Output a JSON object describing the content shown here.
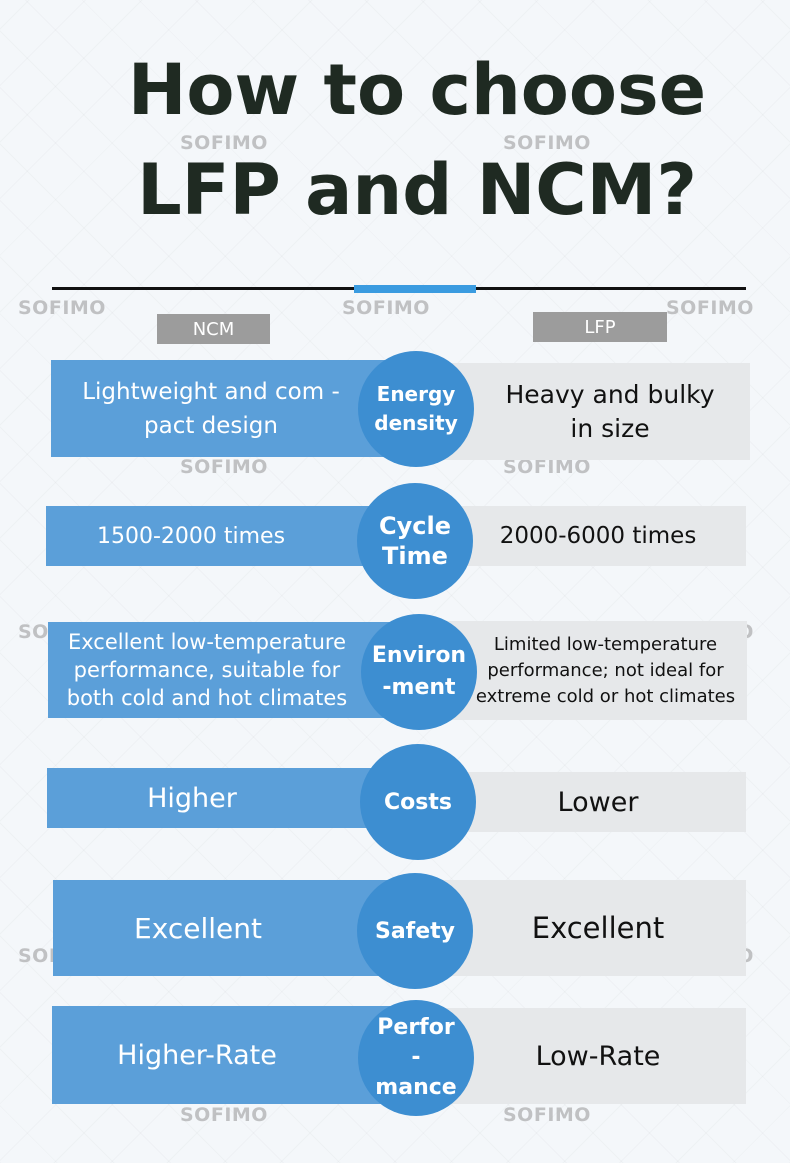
{
  "title": {
    "line1": "How to choose",
    "line2": "LFP and NCM?"
  },
  "watermark": "SOFIMO",
  "columns": {
    "left": "NCM",
    "right": "LFP"
  },
  "rows": [
    {
      "criterion": "Energy density",
      "ncm": "Lightweight and com -pact design",
      "lfp": "Heavy and bulky in size"
    },
    {
      "criterion": "Cycle Time",
      "ncm": "1500-2000 times",
      "lfp": "2000-6000 times"
    },
    {
      "criterion": "Environ -ment",
      "ncm": "Excellent low-temperature performance, suitable for both cold and hot climates",
      "lfp": "Limited low-temperature performance; not ideal for extreme cold or hot climates"
    },
    {
      "criterion": "Costs",
      "ncm": "Higher",
      "lfp": "Lower"
    },
    {
      "criterion": "Safety",
      "ncm": "Excellent",
      "lfp": "Excellent"
    },
    {
      "criterion": "Perfor -mance",
      "ncm": "Higher-Rate",
      "lfp": "Low-Rate"
    }
  ],
  "colors": {
    "ncm_bar": "#5b9fd9",
    "lfp_bar": "#e6e8ea",
    "circle": "#3d8ed1",
    "accent": "#3a9be0",
    "header_label": "#9c9c9c"
  }
}
